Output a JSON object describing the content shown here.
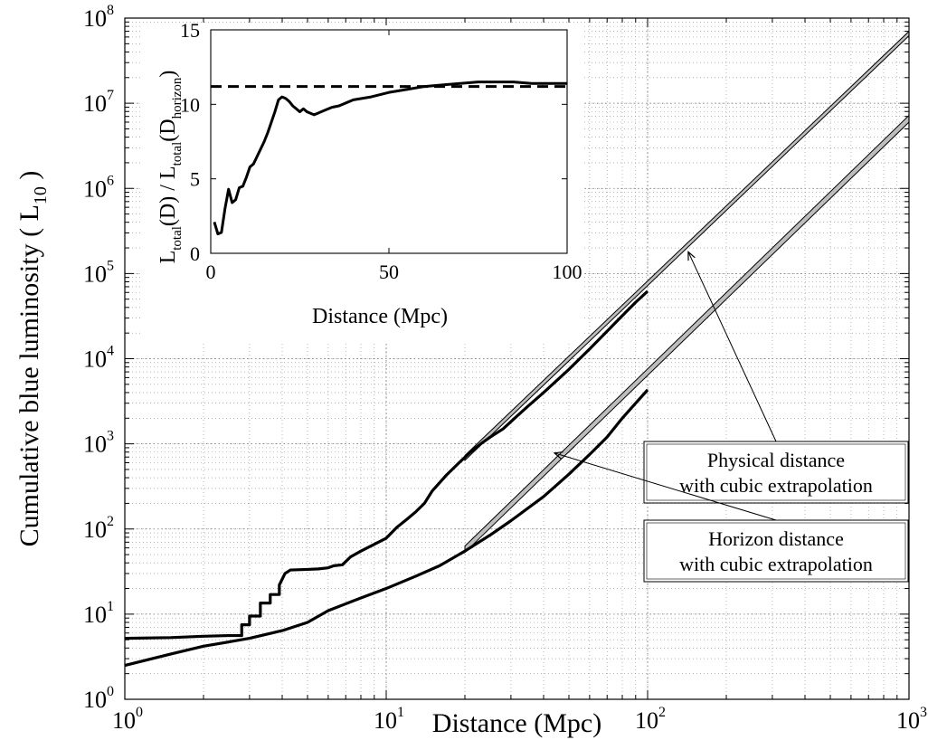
{
  "chart_data": [
    {
      "type": "line",
      "xscale": "log",
      "yscale": "log",
      "xlim": [
        1,
        1000
      ],
      "ylim": [
        1,
        100000000
      ],
      "grid": true,
      "xlabel": "Distance (Mpc)",
      "ylabel": {
        "main": "Cumulative blue luminosity ( L",
        "sub": "10",
        "close": " )"
      },
      "x_ticks": [
        {
          "base": "10",
          "exp": "0"
        },
        {
          "base": "10",
          "exp": "1"
        },
        {
          "base": "10",
          "exp": "2"
        },
        {
          "base": "10",
          "exp": "3"
        }
      ],
      "y_ticks": [
        {
          "base": "10",
          "exp": "0"
        },
        {
          "base": "10",
          "exp": "1"
        },
        {
          "base": "10",
          "exp": "2"
        },
        {
          "base": "10",
          "exp": "3"
        },
        {
          "base": "10",
          "exp": "4"
        },
        {
          "base": "10",
          "exp": "5"
        },
        {
          "base": "10",
          "exp": "6"
        },
        {
          "base": "10",
          "exp": "7"
        },
        {
          "base": "10",
          "exp": "8"
        }
      ],
      "series": [
        {
          "id": "physical",
          "style": "solid-thick",
          "x": [
            1,
            1.5,
            2,
            2.5,
            2.8,
            2.8,
            3.0,
            3.0,
            3.3,
            3.3,
            3.6,
            3.6,
            3.9,
            3.9,
            4.1,
            4.3,
            5,
            5.5,
            6,
            6.3,
            6.8,
            7.3,
            8,
            9,
            10,
            11,
            12,
            13,
            14,
            15,
            17,
            19,
            21,
            23,
            25,
            28,
            31,
            35,
            40,
            50,
            60,
            70,
            80,
            90,
            100
          ],
          "y": [
            5.2,
            5.3,
            5.5,
            5.6,
            5.6,
            7.5,
            7.5,
            9.5,
            9.5,
            13.5,
            13.5,
            17,
            17,
            22,
            30,
            33,
            33.5,
            34,
            35,
            37,
            38,
            47,
            55,
            66,
            78,
            105,
            130,
            160,
            200,
            280,
            430,
            600,
            800,
            1000,
            1200,
            1500,
            2000,
            2800,
            4000,
            7500,
            13000,
            21000,
            32000,
            46000,
            62000
          ]
        },
        {
          "id": "horizon",
          "style": "solid-thick",
          "x": [
            1,
            1.5,
            2,
            3,
            4,
            5,
            6,
            8,
            10,
            13,
            16,
            20,
            25,
            30,
            40,
            50,
            60,
            70,
            80,
            90,
            100
          ],
          "y": [
            2.5,
            3.4,
            4.2,
            5.2,
            6.4,
            8,
            11,
            15.5,
            20,
            28,
            37,
            55,
            85,
            125,
            240,
            440,
            750,
            1200,
            2000,
            3000,
            4300
          ]
        },
        {
          "id": "physical-cubic-extrapolation",
          "style": "gray-band",
          "x": [
            20,
            1000
          ],
          "y_low": [
            640,
            62000000
          ],
          "y_high": [
            730,
            70000000
          ]
        },
        {
          "id": "horizon-cubic-extrapolation",
          "style": "gray-band",
          "x": [
            20,
            1000
          ],
          "y_low": [
            53,
            6000000
          ],
          "y_high": [
            63,
            7200000
          ]
        }
      ],
      "annotations": [
        {
          "id": "physical",
          "lines": [
            "Physical distance",
            "with cubic extrapolation"
          ],
          "arrow_to": [
            143,
            180000
          ]
        },
        {
          "id": "horizon",
          "lines": [
            "Horizon distance",
            "with cubic extrapolation"
          ],
          "arrow_to": [
            44,
            780
          ]
        }
      ]
    },
    {
      "type": "line",
      "inset": true,
      "xlim": [
        0,
        100
      ],
      "ylim": [
        0,
        15
      ],
      "xlabel": "Distance (Mpc)",
      "ylabel": {
        "parts": [
          "L",
          "total",
          "(D) / L",
          "total",
          "(D",
          "horizon",
          ")"
        ]
      },
      "x_ticks": [
        "0",
        "50",
        "100"
      ],
      "y_ticks": [
        "0",
        "5",
        "10",
        "15"
      ],
      "reference_line": {
        "style": "dashed",
        "y": 11.2
      },
      "series": [
        {
          "id": "ratio",
          "x": [
            1,
            2,
            3,
            4,
            5,
            6,
            7,
            8,
            9,
            10,
            11,
            12,
            13,
            14,
            15,
            16,
            17,
            18,
            19,
            20,
            21,
            22,
            23,
            24,
            25,
            26,
            27,
            28,
            29,
            30,
            32,
            34,
            36,
            38,
            40,
            45,
            50,
            55,
            60,
            65,
            70,
            75,
            80,
            85,
            90,
            95,
            100
          ],
          "y": [
            2.1,
            1.3,
            1.4,
            3.0,
            4.3,
            3.4,
            3.6,
            4.4,
            4.5,
            5.1,
            5.8,
            6.0,
            6.5,
            7.0,
            7.5,
            8.1,
            8.8,
            9.5,
            10.3,
            10.5,
            10.4,
            10.2,
            9.9,
            9.7,
            9.5,
            9.7,
            9.5,
            9.4,
            9.3,
            9.4,
            9.6,
            9.8,
            9.9,
            10.1,
            10.3,
            10.5,
            10.8,
            11.0,
            11.2,
            11.3,
            11.4,
            11.5,
            11.5,
            11.5,
            11.4,
            11.4,
            11.4
          ]
        }
      ]
    }
  ]
}
